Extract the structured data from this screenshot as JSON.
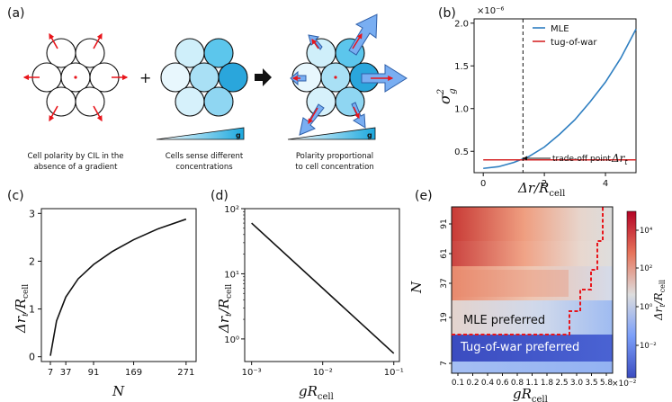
{
  "panels": {
    "a": {
      "label": "(a)",
      "plus": "+",
      "gradient_label": "g",
      "caption1_line1": "Cell polarity by CIL in the",
      "caption1_line2": "absence of a gradient",
      "caption2_line1": "Cells sense different",
      "caption2_line2": "concentrations",
      "caption3_line1": "Polarity proportional",
      "caption3_line2": "to cell concentration",
      "cell_shades": [
        "#cfeffa",
        "#bfe8f7",
        "#5cc6ec",
        "#e8f7fd",
        "#a9e0f5",
        "#ffffff",
        "#2aa6dc",
        "#8fd6f2",
        "#d6f1fb",
        "#bfe8f7"
      ]
    },
    "b": {
      "label": "(b)",
      "exponent": "×10⁻⁶",
      "ylabel_base": "σ",
      "ylabel_sup": "2",
      "ylabel_sub": "g",
      "xlabel": "Δr/R",
      "xlabel_sub": "cell",
      "annotation": "trade-off point",
      "annotation_sym": "Δr",
      "annotation_sub": "t"
    },
    "c": {
      "label": "(c)",
      "ylabel": "Δr",
      "ylabel_sub1": "t",
      "ylabel_mid": "/R",
      "ylabel_sub2": "cell",
      "xlabel": "N"
    },
    "d": {
      "label": "(d)",
      "ylabel": "Δr",
      "ylabel_sub1": "t",
      "ylabel_mid": "/R",
      "ylabel_sub2": "cell",
      "xlabel": "gR",
      "xlabel_sub": "cell"
    },
    "e": {
      "label": "(e)",
      "ylabel": "N",
      "xlabel": "gR",
      "xlabel_sub": "cell",
      "x_exponent": "×10⁻²",
      "mle_text": "MLE preferred",
      "tug_text": "Tug-of-war preferred",
      "cbar_label": "Δr",
      "cbar_sub1": "t",
      "cbar_mid": "/R",
      "cbar_sub2": "cell"
    }
  },
  "chart_data": [
    {
      "id": "b",
      "type": "line",
      "xlim": [
        -0.3,
        5.0
      ],
      "ylim": [
        0.25,
        2.05
      ],
      "xticks": [
        "0",
        "2",
        "4"
      ],
      "yticks": [
        "0.5",
        "1.0",
        "1.5",
        "2.0"
      ],
      "legend_position": "top-right",
      "series": [
        {
          "name": "MLE",
          "color": "#2f7fc1",
          "x": [
            0,
            0.5,
            1.0,
            1.5,
            2.0,
            2.5,
            3.0,
            3.5,
            4.0,
            4.5,
            5.0
          ],
          "y": [
            0.3,
            0.32,
            0.37,
            0.44,
            0.55,
            0.7,
            0.87,
            1.08,
            1.31,
            1.59,
            1.93
          ]
        },
        {
          "name": "tug-of-war",
          "color": "#d62728",
          "x": [
            0,
            5.0
          ],
          "y": [
            0.4,
            0.4
          ]
        }
      ],
      "vline_x": 1.3
    },
    {
      "id": "c",
      "type": "line",
      "xlim": [
        0,
        290
      ],
      "ylim": [
        -0.1,
        3.1
      ],
      "xticks": [
        "7",
        "37",
        "91",
        "169",
        "271"
      ],
      "xtick_values": [
        7,
        37,
        91,
        169,
        271
      ],
      "yticks": [
        "0",
        "1",
        "2",
        "3"
      ],
      "series": [
        {
          "name": "",
          "color": "#111111",
          "x": [
            7,
            19,
            37,
            61,
            91,
            127,
            169,
            217,
            271
          ],
          "y": [
            0.02,
            0.75,
            1.25,
            1.63,
            1.93,
            2.2,
            2.45,
            2.68,
            2.88
          ]
        }
      ]
    },
    {
      "id": "d",
      "type": "line",
      "x_scale": "log",
      "y_scale": "log",
      "xlim": [
        0.0008,
        0.12
      ],
      "ylim": [
        0.45,
        100
      ],
      "xticks": [
        "10⁻³",
        "10⁻²",
        "10⁻¹"
      ],
      "xtick_values": [
        0.001,
        0.01,
        0.1
      ],
      "yticks": [
        "10⁰",
        "10¹",
        "10²"
      ],
      "ytick_values": [
        1,
        10,
        100
      ],
      "series": [
        {
          "name": "",
          "color": "#111111",
          "x": [
            0.001,
            0.1
          ],
          "y": [
            60,
            0.6
          ]
        }
      ]
    },
    {
      "id": "e",
      "type": "heatmap",
      "xticks": [
        "0.1",
        "0.2",
        "0.4",
        "0.6",
        "0.8",
        "1.1",
        "1.8",
        "2.5",
        "3.0",
        "3.5",
        "5.8"
      ],
      "yticks": [
        "7",
        "19",
        "37",
        "61",
        "91"
      ],
      "cbar_ticks": [
        "10⁴",
        "10²",
        "10⁰",
        "10⁻²"
      ],
      "cmap": "coolwarm",
      "boundary_color": "#e8151b"
    }
  ]
}
